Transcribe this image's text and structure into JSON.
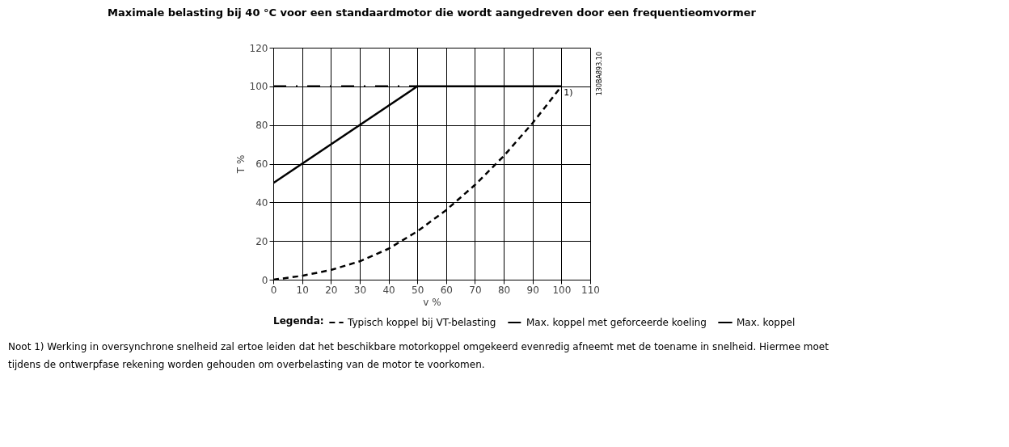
{
  "chart_data": {
    "type": "line",
    "title": "Maximale belasting bij 40 °C voor een standaardmotor die wordt aangedreven door een frequentieomvormer",
    "xlabel": "v %",
    "ylabel": "T %",
    "legend_title": "Legenda:",
    "xlim": [
      0,
      110
    ],
    "xticks": [
      0,
      10,
      20,
      30,
      40,
      50,
      60,
      70,
      80,
      90,
      100,
      110
    ],
    "ylim": [
      0,
      120
    ],
    "yticks": [
      0,
      20,
      40,
      60,
      80,
      100,
      120
    ],
    "grid": true,
    "legend": "bottom",
    "marker": "none",
    "series": [
      {
        "name": "Typisch koppel bij VT-belasting",
        "color": "#000000",
        "line_style": "dashed",
        "x": [
          0,
          10,
          20,
          30,
          40,
          50,
          60,
          70,
          80,
          90,
          100
        ],
        "values": [
          0,
          2,
          5,
          9.5,
          16,
          25,
          36,
          49,
          64,
          81,
          100
        ]
      },
      {
        "name": "Max. koppel met geforceerde koeling",
        "color": "#000000",
        "line_style": "dotted",
        "x": [
          0,
          50
        ],
        "values": [
          100,
          100
        ]
      },
      {
        "name": "Max. koppel",
        "color": "#000000",
        "line_style": "solid",
        "x": [
          0,
          50,
          100
        ],
        "values": [
          50,
          100,
          100
        ]
      }
    ],
    "annotations": [
      {
        "text": "1)",
        "x": 100,
        "y": 100
      },
      "130BA893.10",
      "Noot 1) Werking in oversynchrone snelheid zal ertoe leiden dat het beschikbare motorkoppel omgekeerd evenredig afneemt met de toename in snelheid. Hiermee moet tijdens de ontwerpfase rekening worden gehouden om overbelasting van de motor te voorkomen."
    ]
  }
}
